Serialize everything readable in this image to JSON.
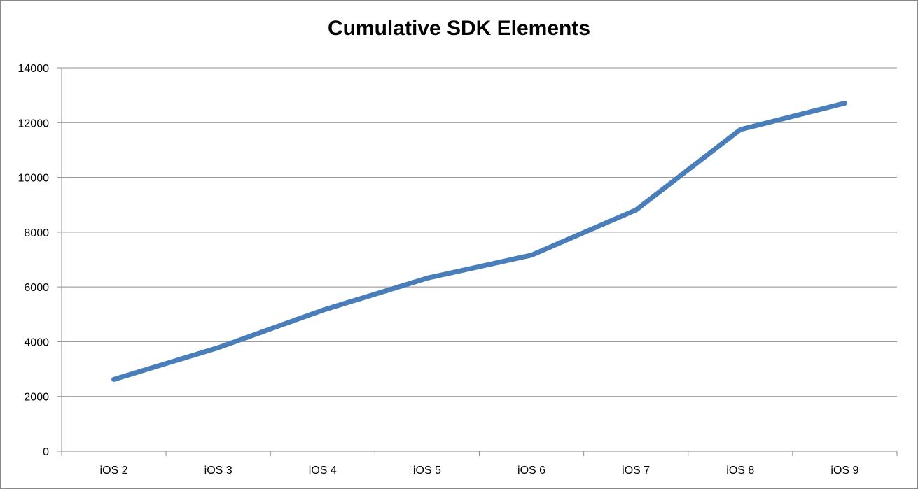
{
  "chart_data": {
    "type": "line",
    "title": "Cumulative SDK Elements",
    "xlabel": "",
    "ylabel": "",
    "categories": [
      "iOS 2",
      "iOS 3",
      "iOS 4",
      "iOS 5",
      "iOS 6",
      "iOS 7",
      "iOS 8",
      "iOS 9"
    ],
    "yticks": [
      "0",
      "2000",
      "4000",
      "6000",
      "8000",
      "10000",
      "12000",
      "14000"
    ],
    "ylim": [
      0,
      14000
    ],
    "series": [
      {
        "values": [
          2620,
          3780,
          5150,
          6320,
          7160,
          8810,
          11750,
          12710
        ]
      }
    ],
    "grid": true,
    "legend": "none",
    "colors": {
      "line": "#4a7ebb",
      "grid": "#8c8c8c",
      "axis": "#8c8c8c"
    }
  }
}
